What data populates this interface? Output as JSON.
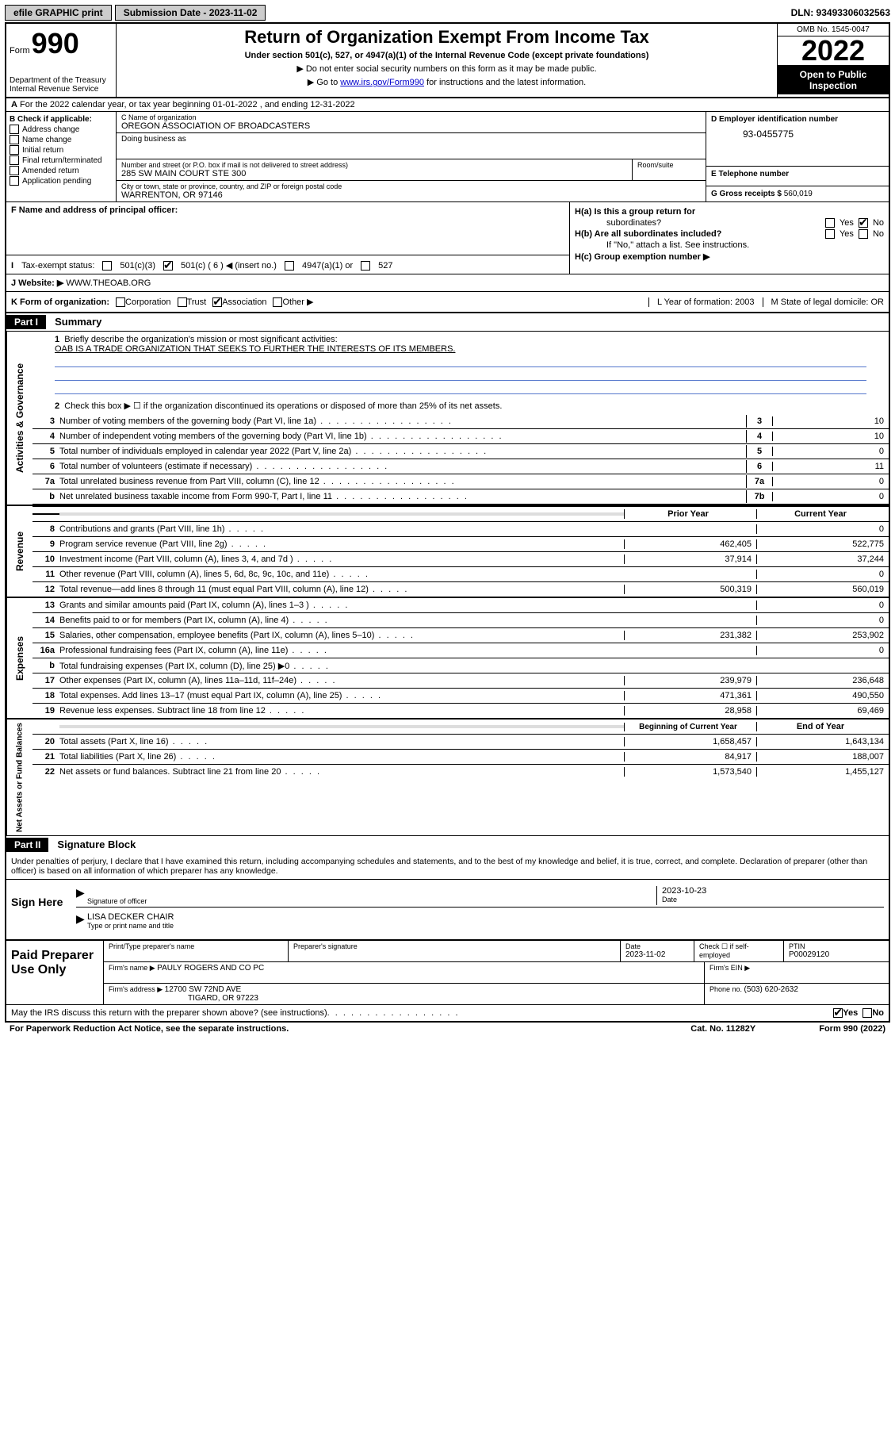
{
  "top": {
    "efile": "efile GRAPHIC print",
    "submission_label": "Submission Date - 2023-11-02",
    "dln": "DLN: 93493306032563"
  },
  "header": {
    "form_word": "Form",
    "form_num": "990",
    "dept": "Department of the Treasury",
    "irs": "Internal Revenue Service",
    "title": "Return of Organization Exempt From Income Tax",
    "subtitle": "Under section 501(c), 527, or 4947(a)(1) of the Internal Revenue Code (except private foundations)",
    "instr1": "▶ Do not enter social security numbers on this form as it may be made public.",
    "instr2_pre": "▶ Go to ",
    "instr2_link": "www.irs.gov/Form990",
    "instr2_post": " for instructions and the latest information.",
    "omb": "OMB No. 1545-0047",
    "year": "2022",
    "open": "Open to Public Inspection"
  },
  "row_a": "For the 2022 calendar year, or tax year beginning 01-01-2022   , and ending 12-31-2022",
  "sec_b": {
    "label": "B Check if applicable:",
    "items": [
      "Address change",
      "Name change",
      "Initial return",
      "Final return/terminated",
      "Amended return",
      "Application pending"
    ]
  },
  "sec_c": {
    "name_label": "C Name of organization",
    "name": "OREGON ASSOCIATION OF BROADCASTERS",
    "dba_label": "Doing business as",
    "street_label": "Number and street (or P.O. box if mail is not delivered to street address)",
    "street": "285 SW MAIN COURT STE 300",
    "room_label": "Room/suite",
    "city_label": "City or town, state or province, country, and ZIP or foreign postal code",
    "city": "WARRENTON, OR  97146"
  },
  "sec_d": {
    "label": "D Employer identification number",
    "val": "93-0455775"
  },
  "sec_e": {
    "label": "E Telephone number"
  },
  "sec_g_label": "G Gross receipts $ ",
  "sec_g_val": "560,019",
  "sec_f": "F  Name and address of principal officer:",
  "sec_h": {
    "a": "H(a)  Is this a group return for",
    "a2": "subordinates?",
    "b": "H(b)  Are all subordinates included?",
    "b2": "If \"No,\" attach a list. See instructions.",
    "c": "H(c)  Group exemption number ▶"
  },
  "row_i": {
    "label": "Tax-exempt status:",
    "opt1": "501(c)(3)",
    "opt2": "501(c) ( 6 ) ◀ (insert no.)",
    "opt3": "4947(a)(1) or",
    "opt4": "527"
  },
  "row_j_label": "J   Website: ▶ ",
  "row_j_val": "WWW.THEOAB.ORG",
  "row_k": {
    "label": "K Form of organization:",
    "corp": "Corporation",
    "trust": "Trust",
    "assoc": "Association",
    "other": "Other ▶",
    "l": "L Year of formation: 2003",
    "m": "M State of legal domicile: OR"
  },
  "part1": {
    "tag": "Part I",
    "title": "Summary",
    "line1_label": "Briefly describe the organization's mission or most significant activities:",
    "line1_text": "OAB IS A TRADE ORGANIZATION THAT SEEKS TO FURTHER THE INTERESTS OF ITS MEMBERS.",
    "line2": "Check this box ▶ ☐ if the organization discontinued its operations or disposed of more than 25% of its net assets.",
    "lines_gov": [
      {
        "n": "3",
        "t": "Number of voting members of the governing body (Part VI, line 1a)",
        "box": "3",
        "v": "10"
      },
      {
        "n": "4",
        "t": "Number of independent voting members of the governing body (Part VI, line 1b)",
        "box": "4",
        "v": "10"
      },
      {
        "n": "5",
        "t": "Total number of individuals employed in calendar year 2022 (Part V, line 2a)",
        "box": "5",
        "v": "0"
      },
      {
        "n": "6",
        "t": "Total number of volunteers (estimate if necessary)",
        "box": "6",
        "v": "11"
      },
      {
        "n": "7a",
        "t": "Total unrelated business revenue from Part VIII, column (C), line 12",
        "box": "7a",
        "v": "0"
      },
      {
        "n": "b",
        "t": "Net unrelated business taxable income from Form 990-T, Part I, line 11",
        "box": "7b",
        "v": "0"
      }
    ],
    "prior_label": "Prior Year",
    "curr_label": "Current Year",
    "lines_rev": [
      {
        "n": "8",
        "t": "Contributions and grants (Part VIII, line 1h)",
        "p": "",
        "c": "0"
      },
      {
        "n": "9",
        "t": "Program service revenue (Part VIII, line 2g)",
        "p": "462,405",
        "c": "522,775"
      },
      {
        "n": "10",
        "t": "Investment income (Part VIII, column (A), lines 3, 4, and 7d )",
        "p": "37,914",
        "c": "37,244"
      },
      {
        "n": "11",
        "t": "Other revenue (Part VIII, column (A), lines 5, 6d, 8c, 9c, 10c, and 11e)",
        "p": "",
        "c": "0"
      },
      {
        "n": "12",
        "t": "Total revenue—add lines 8 through 11 (must equal Part VIII, column (A), line 12)",
        "p": "500,319",
        "c": "560,019"
      }
    ],
    "lines_exp": [
      {
        "n": "13",
        "t": "Grants and similar amounts paid (Part IX, column (A), lines 1–3 )",
        "p": "",
        "c": "0"
      },
      {
        "n": "14",
        "t": "Benefits paid to or for members (Part IX, column (A), line 4)",
        "p": "",
        "c": "0"
      },
      {
        "n": "15",
        "t": "Salaries, other compensation, employee benefits (Part IX, column (A), lines 5–10)",
        "p": "231,382",
        "c": "253,902"
      },
      {
        "n": "16a",
        "t": "Professional fundraising fees (Part IX, column (A), line 11e)",
        "p": "",
        "c": "0"
      },
      {
        "n": "b",
        "t": "Total fundraising expenses (Part IX, column (D), line 25) ▶0",
        "p": "shade",
        "c": "shade"
      },
      {
        "n": "17",
        "t": "Other expenses (Part IX, column (A), lines 11a–11d, 11f–24e)",
        "p": "239,979",
        "c": "236,648"
      },
      {
        "n": "18",
        "t": "Total expenses. Add lines 13–17 (must equal Part IX, column (A), line 25)",
        "p": "471,361",
        "c": "490,550"
      },
      {
        "n": "19",
        "t": "Revenue less expenses. Subtract line 18 from line 12",
        "p": "28,958",
        "c": "69,469"
      }
    ],
    "begin_label": "Beginning of Current Year",
    "end_label": "End of Year",
    "lines_net": [
      {
        "n": "20",
        "t": "Total assets (Part X, line 16)",
        "p": "1,658,457",
        "c": "1,643,134"
      },
      {
        "n": "21",
        "t": "Total liabilities (Part X, line 26)",
        "p": "84,917",
        "c": "188,007"
      },
      {
        "n": "22",
        "t": "Net assets or fund balances. Subtract line 21 from line 20",
        "p": "1,573,540",
        "c": "1,455,127"
      }
    ]
  },
  "part2": {
    "tag": "Part II",
    "title": "Signature Block",
    "penalty": "Under penalties of perjury, I declare that I have examined this return, including accompanying schedules and statements, and to the best of my knowledge and belief, it is true, correct, and complete. Declaration of preparer (other than officer) is based on all information of which preparer has any knowledge.",
    "sign_here": "Sign Here",
    "sig_date": "2023-10-23",
    "sig_officer_label": "Signature of officer",
    "date_label": "Date",
    "name_title": "LISA DECKER  CHAIR",
    "name_title_label": "Type or print name and title"
  },
  "paid": {
    "label": "Paid Preparer Use Only",
    "h1": "Print/Type preparer's name",
    "h2": "Preparer's signature",
    "h3": "Date",
    "date": "2023-11-02",
    "h4_pre": "Check ☐ if self-employed",
    "h5": "PTIN",
    "ptin": "P00029120",
    "firm_name_label": "Firm's name    ▶ ",
    "firm_name": "PAULY ROGERS AND CO PC",
    "firm_ein_label": "Firm's EIN ▶",
    "firm_addr_label": "Firm's address ▶ ",
    "firm_addr1": "12700 SW 72ND AVE",
    "firm_addr2": "TIGARD, OR  97223",
    "phone_label": "Phone no. ",
    "phone": "(503) 620-2632"
  },
  "footer": {
    "discuss": "May the IRS discuss this return with the preparer shown above? (see instructions)",
    "paperwork": "For Paperwork Reduction Act Notice, see the separate instructions.",
    "cat": "Cat. No. 11282Y",
    "form": "Form 990 (2022)"
  },
  "vert": {
    "gov": "Activities & Governance",
    "rev": "Revenue",
    "exp": "Expenses",
    "net": "Net Assets or Fund Balances"
  }
}
